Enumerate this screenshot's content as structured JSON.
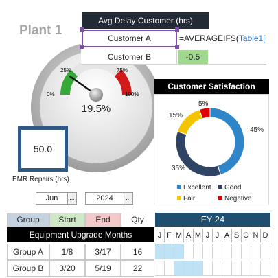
{
  "plant": {
    "title": "Plant 1"
  },
  "gauge": {
    "value_label": "19.5%",
    "value_fraction": 0.195,
    "tick_labels": [
      "0%",
      "25%",
      "75%",
      "100%"
    ],
    "colors": {
      "low": "#34a937",
      "mid": "#e6e6e6",
      "high": "#d11a1a",
      "needle": "#111111"
    }
  },
  "emr": {
    "value": "50.0",
    "label": "EMR  Repairs (hrs)"
  },
  "selectors": {
    "month": "Jun",
    "year": "2024",
    "button_glyph": "..."
  },
  "excel": {
    "header": "Avg Delay Customer (hrs)",
    "row_a_label": "Customer A",
    "formula_prefix": "=AVERAGEIFS(",
    "formula_ref": "Table1[",
    "row_b_label": "Customer B",
    "row_b_value": "-0.5"
  },
  "satisfaction": {
    "title": "Customer Satisfaction",
    "legend": [
      {
        "label": "Excellent",
        "color": "#2e86c8"
      },
      {
        "label": "Good",
        "color": "#2f4464"
      },
      {
        "label": "Fair",
        "color": "#f5c400"
      },
      {
        "label": "Negative",
        "color": "#e00000"
      }
    ],
    "chart_data": {
      "type": "pie",
      "categories": [
        "Excellent",
        "Good",
        "Fair",
        "Negative"
      ],
      "values": [
        45,
        35,
        15,
        5
      ],
      "value_labels": [
        "45%",
        "35%",
        "15%",
        "5%"
      ]
    }
  },
  "table": {
    "headers": {
      "group": "Group",
      "start": "Start",
      "end": "End",
      "qty": "Qty"
    },
    "header_colors": {
      "group": "#c5d3e0",
      "start": "#cfe8c8",
      "end": "#f4c8c8",
      "qty": "#ffffff"
    },
    "fy_label": "FY 24",
    "banner": "Equipment Upgrade Months",
    "months": [
      "J",
      "F",
      "M",
      "A",
      "M",
      "J",
      "J",
      "A",
      "S",
      "O",
      "N",
      "D"
    ],
    "rows": [
      {
        "group": "Group A",
        "start": "1/8",
        "end": "3/17",
        "qty": "16",
        "active_months": [
          0,
          1,
          2
        ]
      },
      {
        "group": "Group B",
        "start": "3/20",
        "end": "5/19",
        "qty": "22",
        "active_months": [
          2,
          3,
          4
        ]
      }
    ]
  }
}
